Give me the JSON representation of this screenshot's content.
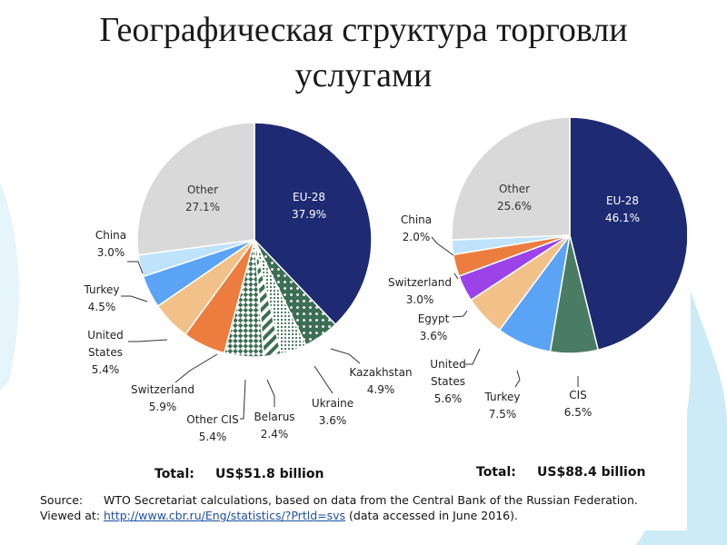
{
  "slide": {
    "title_line1": "Географическая структура торговли",
    "title_line2": "услугами"
  },
  "colors": {
    "eu": "#1e2b73",
    "other": "#d9d9d9",
    "china": "#bfe3fb",
    "turkey": "#5ba3f5",
    "united_states": "#f2c189",
    "switzerland": "#ec7d3e",
    "egypt": "#9b42e8",
    "cis": "#4a7c64",
    "cis_pattern": "#3d6e55",
    "slide_accent": "#9fd6ee"
  },
  "chart_data": [
    {
      "type": "pie",
      "title": "",
      "total_label": "Total:",
      "total_value": "US$51.8 billion",
      "slices": [
        {
          "name": "EU-28",
          "value": 37.9,
          "label": "37.9%"
        },
        {
          "name": "Kazakhstan",
          "value": 4.9,
          "label": "4.9%"
        },
        {
          "name": "Ukraine",
          "value": 3.6,
          "label": "3.6%"
        },
        {
          "name": "Belarus",
          "value": 2.4,
          "label": "2.4%"
        },
        {
          "name": "Other CIS",
          "value": 5.4,
          "label": "5.4%"
        },
        {
          "name": "Switzerland",
          "value": 5.9,
          "label": "5.9%"
        },
        {
          "name": "United States",
          "value": 5.4,
          "label": "5.4%"
        },
        {
          "name": "Turkey",
          "value": 4.5,
          "label": "4.5%"
        },
        {
          "name": "China",
          "value": 3.0,
          "label": "3.0%"
        },
        {
          "name": "Other",
          "value": 27.1,
          "label": "27.1%"
        }
      ]
    },
    {
      "type": "pie",
      "title": "",
      "total_label": "Total:",
      "total_value": "US$88.4 billion",
      "slices": [
        {
          "name": "EU-28",
          "value": 46.1,
          "label": "46.1%"
        },
        {
          "name": "CIS",
          "value": 6.5,
          "label": "6.5%"
        },
        {
          "name": "Turkey",
          "value": 7.5,
          "label": "7.5%"
        },
        {
          "name": "United States",
          "value": 5.6,
          "label": "5.6%"
        },
        {
          "name": "Egypt",
          "value": 3.6,
          "label": "3.6%"
        },
        {
          "name": "Switzerland",
          "value": 3.0,
          "label": "3.0%"
        },
        {
          "name": "China",
          "value": 2.0,
          "label": "2.0%"
        },
        {
          "name": "Other",
          "value": 25.6,
          "label": "25.6%"
        }
      ]
    }
  ],
  "source": {
    "label": "Source:",
    "text": "WTO Secretariat calculations, based on data from the Central Bank of the Russian Federation.",
    "viewed_label": "Viewed at:",
    "url": "http://www.cbr.ru/Eng/statistics/?Prtld=svs",
    "accessed": "(data accessed in June 2016)."
  }
}
